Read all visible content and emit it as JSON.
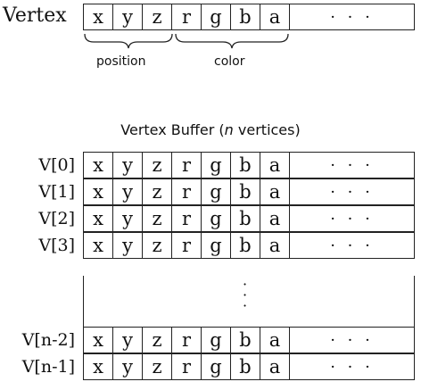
{
  "vertex": {
    "label": "Vertex",
    "components": [
      "x",
      "y",
      "z",
      "r",
      "g",
      "b",
      "a"
    ],
    "ellipsis": "· · ·",
    "position_label": "position",
    "color_label": "color"
  },
  "buffer": {
    "title_prefix": "Vertex Buffer (",
    "title_n": "n",
    "title_suffix": " vertices)",
    "rows": [
      {
        "label": "V[0]",
        "components": [
          "x",
          "y",
          "z",
          "r",
          "g",
          "b",
          "a"
        ],
        "ellipsis": "· · ·"
      },
      {
        "label": "V[1]",
        "components": [
          "x",
          "y",
          "z",
          "r",
          "g",
          "b",
          "a"
        ],
        "ellipsis": "· · ·"
      },
      {
        "label": "V[2]",
        "components": [
          "x",
          "y",
          "z",
          "r",
          "g",
          "b",
          "a"
        ],
        "ellipsis": "· · ·"
      },
      {
        "label": "V[3]",
        "components": [
          "x",
          "y",
          "z",
          "r",
          "g",
          "b",
          "a"
        ],
        "ellipsis": "· · ·"
      },
      {
        "label": "V[n-2]",
        "components": [
          "x",
          "y",
          "z",
          "r",
          "g",
          "b",
          "a"
        ],
        "ellipsis": "· · ·"
      },
      {
        "label": "V[n-1]",
        "components": [
          "x",
          "y",
          "z",
          "r",
          "g",
          "b",
          "a"
        ],
        "ellipsis": "· · ·"
      }
    ],
    "gap_dots": "·\n·\n·"
  }
}
